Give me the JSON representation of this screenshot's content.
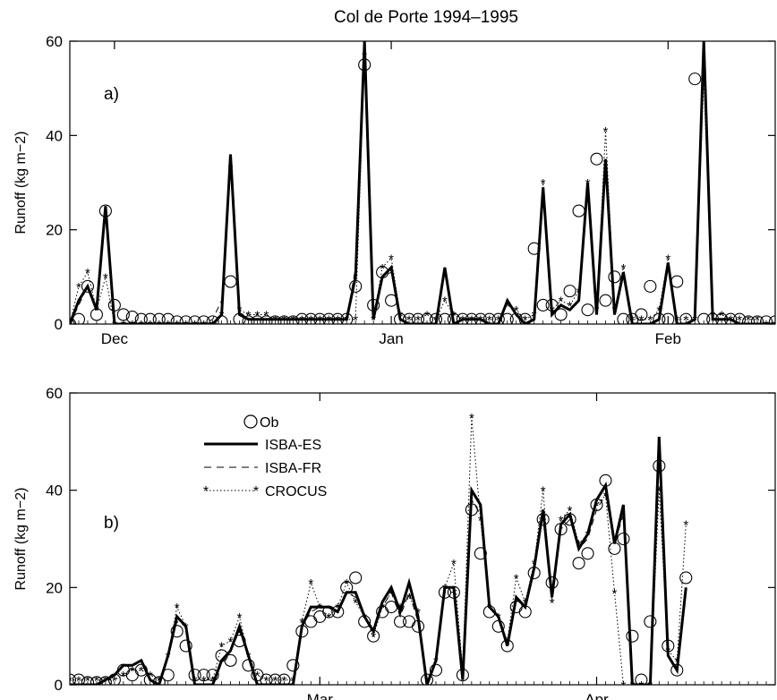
{
  "figure_title": "Col de Porte 1994–1995",
  "chart_data": [
    {
      "type": "line",
      "panel_label": "a)",
      "ylabel": "Runoff (kg m−2)",
      "xlabel": "",
      "ylim": [
        0,
        60
      ],
      "y_ticks": [
        0,
        20,
        40,
        60
      ],
      "x_tick_labels": [
        "Dec",
        "Jan",
        "Feb"
      ],
      "x_tick_positions": [
        5,
        36,
        67
      ],
      "xlim": [
        0,
        79
      ],
      "grid": false,
      "series": [
        {
          "name": "Ob",
          "style": "circle-markers",
          "values": [
            0,
            1,
            8,
            2,
            24,
            4,
            2,
            1.5,
            1,
            1,
            1,
            1,
            0.5,
            0.5,
            0.5,
            0.5,
            0.5,
            0.5,
            9,
            1,
            0.5,
            0.5,
            0.5,
            0.5,
            0.5,
            0.5,
            1,
            1,
            1,
            1,
            1,
            1,
            8,
            55,
            4,
            11,
            5,
            1,
            1,
            1,
            1,
            1,
            1,
            1,
            1,
            1,
            1,
            1,
            1,
            1,
            1,
            1,
            16,
            4,
            4,
            2,
            7,
            24,
            3,
            35,
            5,
            10,
            1,
            1,
            2,
            8,
            1,
            1,
            9,
            1,
            52,
            1,
            1,
            1,
            1,
            1,
            0.5,
            0.5,
            0.5,
            0.5
          ]
        },
        {
          "name": "ISBA-ES",
          "style": "solid-thick",
          "values": [
            0,
            5,
            8,
            3,
            25,
            0,
            0,
            0,
            0,
            0,
            0,
            0,
            0,
            0,
            0,
            0,
            0,
            2,
            36,
            2,
            1,
            1,
            1,
            1,
            1,
            1,
            1,
            1,
            1,
            1,
            1,
            1,
            10,
            60,
            1,
            10,
            12,
            1,
            0,
            0,
            0,
            0,
            12,
            0,
            1,
            1,
            1,
            0,
            0,
            5,
            2,
            0,
            1,
            29,
            2,
            4,
            3,
            5,
            30,
            2,
            35,
            2,
            11,
            0,
            0,
            0,
            1,
            13,
            0,
            0,
            1,
            60,
            1,
            1,
            1,
            0,
            0,
            0,
            0,
            0
          ]
        },
        {
          "name": "ISBA-FR",
          "style": "dashed",
          "values": [
            0,
            4,
            8,
            3,
            24,
            0,
            0,
            0,
            0,
            0,
            0,
            0,
            0,
            0,
            0,
            0,
            1,
            5,
            34,
            2,
            1,
            1,
            1,
            1,
            1,
            1,
            1,
            1,
            1,
            1,
            1,
            1,
            12,
            58,
            1,
            10,
            11,
            1,
            0,
            0,
            0,
            0,
            11,
            0,
            1,
            1,
            1,
            0,
            0,
            5,
            2,
            0,
            1,
            28,
            2,
            4,
            3,
            5,
            29,
            2,
            34,
            2,
            11,
            0,
            0,
            0,
            1,
            12,
            0,
            0,
            1,
            58,
            1,
            1,
            1,
            0,
            0,
            0,
            0,
            0
          ]
        },
        {
          "name": "CROCUS",
          "style": "dotted-star",
          "values": [
            0,
            8,
            11,
            3,
            10,
            0,
            0,
            0,
            0,
            0,
            0,
            0,
            0,
            0,
            0,
            0,
            0,
            2,
            33,
            3,
            2,
            2,
            2,
            1,
            1,
            1,
            1,
            1,
            1,
            1,
            1,
            1,
            1,
            57,
            1,
            12,
            14,
            2,
            1,
            1,
            2,
            1,
            5,
            2,
            1,
            1,
            1,
            1,
            1,
            4,
            3,
            1,
            2,
            30,
            3,
            5,
            4,
            7,
            30,
            3,
            41,
            3,
            12,
            1,
            1,
            1,
            3,
            14,
            1,
            1,
            1,
            52,
            2,
            2,
            1,
            1,
            1,
            1,
            0,
            0
          ]
        }
      ]
    },
    {
      "type": "line",
      "panel_label": "b)",
      "ylabel": "Runoff (kg m−2)",
      "xlabel": "",
      "ylim": [
        0,
        60
      ],
      "y_ticks": [
        0,
        20,
        40,
        60
      ],
      "x_tick_labels": [
        "Mar",
        "Apr"
      ],
      "x_tick_positions": [
        28,
        59
      ],
      "xlim": [
        0,
        79
      ],
      "grid": false,
      "legend": {
        "position": "top-left",
        "entries": [
          "Ob",
          "ISBA-ES",
          "ISBA-FR",
          "CROCUS"
        ]
      },
      "series": [
        {
          "name": "Ob",
          "style": "circle-markers",
          "values": [
            1,
            1,
            0.5,
            0.5,
            0.5,
            1,
            3,
            2,
            3,
            1,
            0.5,
            2,
            11,
            8,
            2,
            2,
            2,
            6,
            5,
            9,
            4,
            2,
            1,
            1,
            1,
            4,
            11,
            13,
            14,
            15,
            15,
            20,
            22,
            13,
            10,
            15,
            16,
            13,
            13,
            12,
            1,
            3,
            19,
            19,
            2,
            36,
            27,
            15,
            12,
            8,
            16,
            15,
            23,
            34,
            21,
            32,
            34,
            25,
            27,
            37,
            42,
            28,
            30,
            10,
            1,
            13,
            45,
            8,
            3,
            22
          ]
        },
        {
          "name": "ISBA-ES",
          "style": "solid-thick",
          "values": [
            0,
            0,
            0,
            0,
            1,
            2,
            4,
            4,
            5,
            1,
            0,
            6,
            14,
            12,
            0,
            0,
            0,
            5,
            7,
            12,
            6,
            0,
            0,
            0,
            0,
            0,
            12,
            16,
            16,
            16,
            15,
            19,
            19,
            14,
            11,
            17,
            20,
            15,
            21,
            14,
            0,
            5,
            20,
            20,
            1,
            40,
            37,
            16,
            14,
            8,
            18,
            16,
            24,
            36,
            18,
            33,
            35,
            28,
            31,
            38,
            41,
            29,
            37,
            0,
            0,
            0,
            51,
            6,
            3,
            20
          ]
        },
        {
          "name": "ISBA-FR",
          "style": "dashed",
          "values": [
            0,
            0,
            0,
            0,
            1,
            2,
            4,
            4,
            5,
            1,
            0,
            6,
            13,
            12,
            0,
            0,
            0,
            5,
            7,
            11,
            6,
            0,
            0,
            0,
            0,
            0,
            12,
            15,
            16,
            16,
            15,
            19,
            18,
            14,
            11,
            16,
            19,
            14,
            19,
            13,
            0,
            5,
            19,
            19,
            1,
            38,
            35,
            16,
            14,
            8,
            18,
            16,
            23,
            35,
            18,
            32,
            34,
            28,
            30,
            36,
            39,
            29,
            35,
            0,
            0,
            0,
            49,
            6,
            3,
            20
          ]
        },
        {
          "name": "CROCUS",
          "style": "dotted-star",
          "values": [
            1,
            1,
            1,
            1,
            1,
            1,
            2,
            3,
            3,
            2,
            1,
            6,
            16,
            12,
            1,
            1,
            1,
            8,
            9,
            14,
            6,
            2,
            1,
            1,
            1,
            1,
            13,
            21,
            16,
            14,
            16,
            21,
            17,
            14,
            10,
            16,
            19,
            16,
            18,
            15,
            1,
            5,
            20,
            25,
            3,
            55,
            34,
            16,
            14,
            9,
            22,
            17,
            25,
            40,
            17,
            34,
            36,
            29,
            31,
            37,
            39,
            19,
            0,
            0,
            0,
            0,
            40,
            7,
            5,
            33
          ]
        }
      ]
    }
  ]
}
